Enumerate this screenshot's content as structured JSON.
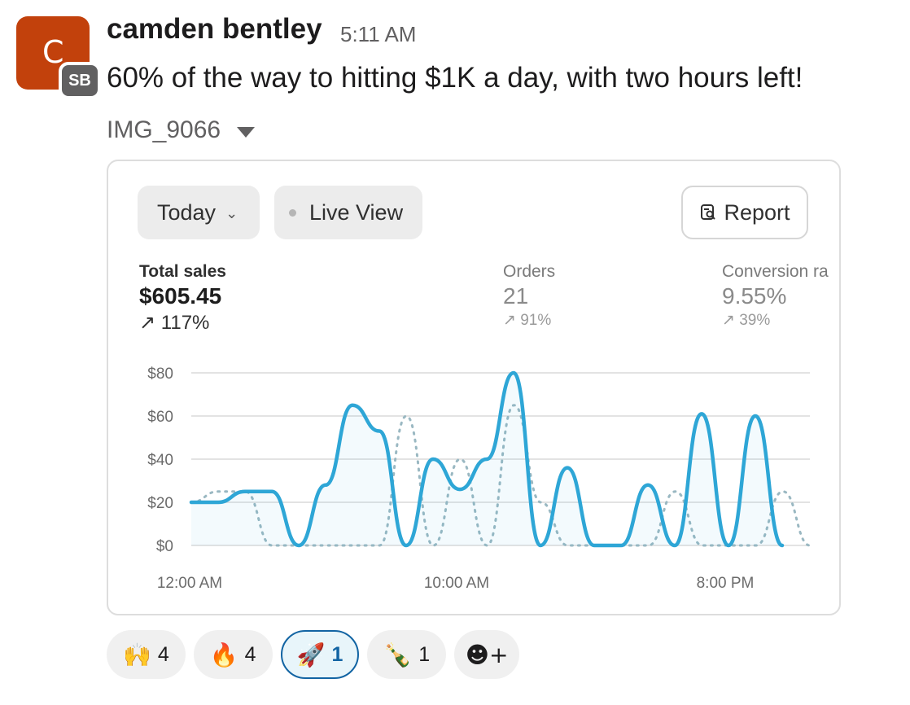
{
  "message": {
    "avatar_letter": "C",
    "badge": "SB",
    "username": "camden bentley",
    "time": "5:11 AM",
    "text": "60% of the way to hitting $1K a day, with two hours left!",
    "attachment_name": "IMG_9066"
  },
  "card": {
    "date_filter": "Today",
    "live_view": "Live View",
    "report": "Report",
    "metrics": [
      {
        "label": "Total sales",
        "value": "$605.45",
        "change": "↗ 117%"
      },
      {
        "label": "Orders",
        "value": "21",
        "change": "↗ 91%"
      },
      {
        "label": "Conversion ra",
        "value": "9.55%",
        "change": "↗ 39%"
      }
    ]
  },
  "chart_data": {
    "type": "line",
    "title": "",
    "xlabel": "",
    "ylabel": "",
    "y_ticks": [
      "$80",
      "$60",
      "$40",
      "$20",
      "$0"
    ],
    "x_ticks": [
      "12:00 AM",
      "10:00 AM",
      "8:00 PM"
    ],
    "ylim": [
      0,
      80
    ],
    "grid": true,
    "legend": "none",
    "colors": {
      "series": "#2ea6d6",
      "comparison": "#9ab8c2"
    },
    "series": [
      {
        "style": "solid",
        "values": [
          20,
          20,
          25,
          25,
          0,
          28,
          65,
          53,
          0,
          40,
          26,
          40,
          80,
          0,
          36,
          0,
          0,
          28,
          0,
          61,
          0,
          60,
          0
        ]
      },
      {
        "style": "dotted",
        "values": [
          20,
          25,
          25,
          0,
          0,
          0,
          0,
          0,
          60,
          0,
          40,
          0,
          65,
          20,
          0,
          0,
          0,
          0,
          25,
          0,
          0,
          0,
          25,
          0
        ]
      }
    ]
  },
  "reactions": [
    {
      "emoji": "🙌",
      "count": "4",
      "name": "raised-hands"
    },
    {
      "emoji": "🔥",
      "count": "4",
      "name": "fire"
    },
    {
      "emoji": "🚀",
      "count": "1",
      "name": "rocket"
    },
    {
      "emoji": "🍾",
      "count": "1",
      "name": "champagne"
    }
  ],
  "add_reaction_icon": "☻+"
}
